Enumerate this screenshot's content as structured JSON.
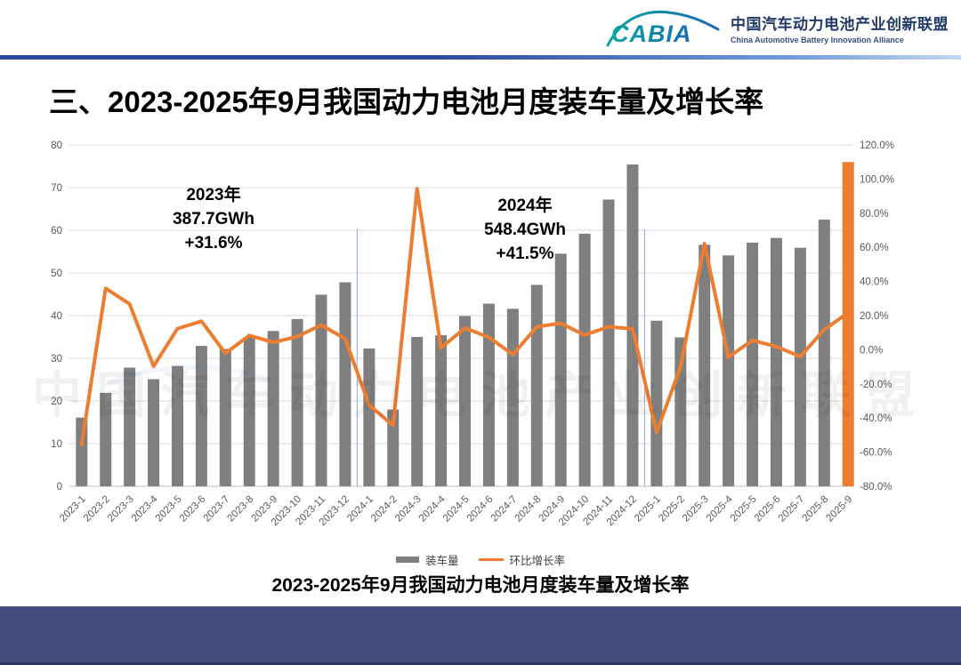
{
  "header": {
    "logo_text": "CABIA",
    "org_name_cn": "中国汽车动力电池产业创新联盟",
    "org_name_en": "China Automotive Battery Innovation Alliance"
  },
  "title": "三、2023-2025年9月我国动力电池月度装车量及增长率",
  "watermark": "中国汽车动力电池产业创新联盟",
  "annotations": [
    {
      "lines": [
        "2023年",
        "387.7GWh",
        "+31.6%"
      ]
    },
    {
      "lines": [
        "2024年",
        "548.4GWh",
        "+41.5%"
      ]
    }
  ],
  "legend": [
    {
      "label": "装车量",
      "type": "bar"
    },
    {
      "label": "环比增长率",
      "type": "line"
    }
  ],
  "caption": "2023-2025年9月我国动力电池月度装车量及增长率",
  "chart_data": {
    "type": "bar",
    "subtype": "combo-bar-line",
    "title": "2023-2025年9月我国动力电池月度装车量及增长率",
    "categories": [
      "2023-1",
      "2023-2",
      "2023-3",
      "2023-4",
      "2023-5",
      "2023-6",
      "2023-7",
      "2023-8",
      "2023-9",
      "2023-10",
      "2023-11",
      "2023-12",
      "2024-1",
      "2024-2",
      "2024-3",
      "2024-4",
      "2024-5",
      "2024-6",
      "2024-7",
      "2024-8",
      "2024-9",
      "2024-10",
      "2024-11",
      "2024-12",
      "2025-1",
      "2025-2",
      "2025-3",
      "2025-4",
      "2025-5",
      "2025-6",
      "2025-7",
      "2025-8",
      "2025-9"
    ],
    "series": [
      {
        "name": "装车量",
        "type": "bar",
        "axis": "left",
        "unit": "GWh",
        "values": [
          16.1,
          21.9,
          27.8,
          25.1,
          28.2,
          32.9,
          32.2,
          34.9,
          36.4,
          39.2,
          44.9,
          47.8,
          32.3,
          18.0,
          35.0,
          35.4,
          39.9,
          42.8,
          41.6,
          47.2,
          54.5,
          59.2,
          67.2,
          75.4,
          38.8,
          34.9,
          56.6,
          54.1,
          57.1,
          58.2,
          55.9,
          62.5,
          76.0
        ]
      },
      {
        "name": "环比增长率",
        "type": "line",
        "axis": "right",
        "unit": "%",
        "values": [
          -55.4,
          36.0,
          26.9,
          -9.7,
          12.4,
          16.7,
          -2.1,
          8.4,
          4.3,
          7.7,
          14.5,
          6.5,
          -32.4,
          -44.3,
          94.4,
          1.1,
          12.7,
          7.3,
          -2.8,
          13.5,
          15.5,
          8.6,
          13.5,
          12.2,
          -48.5,
          -10.1,
          62.2,
          -4.4,
          5.5,
          1.9,
          -4.0,
          11.8,
          21.6
        ]
      }
    ],
    "left_axis": {
      "min": 0,
      "max": 80,
      "step": 10,
      "ticks": [
        0,
        10,
        20,
        30,
        40,
        50,
        60,
        70,
        80
      ]
    },
    "right_axis": {
      "min": -80,
      "max": 120,
      "step": 20,
      "ticks": [
        "120.0%",
        "100.0%",
        "80.0%",
        "60.0%",
        "40.0%",
        "20.0%",
        "0.0%",
        "-20.0%",
        "-40.0%",
        "-60.0%",
        "-80.0%"
      ]
    },
    "separators_after_index": [
      11,
      23
    ],
    "highlight_last_bar": true,
    "grid": true,
    "legend_position": "bottom",
    "colors": {
      "bar": "#7f7f7f",
      "bar_highlight": "#ed7d31",
      "line": "#ed7d31",
      "gridline": "#d9d9d9",
      "baseline": "#bfbfbf",
      "separator": "#8faadc",
      "axis_text": "#595959"
    }
  }
}
